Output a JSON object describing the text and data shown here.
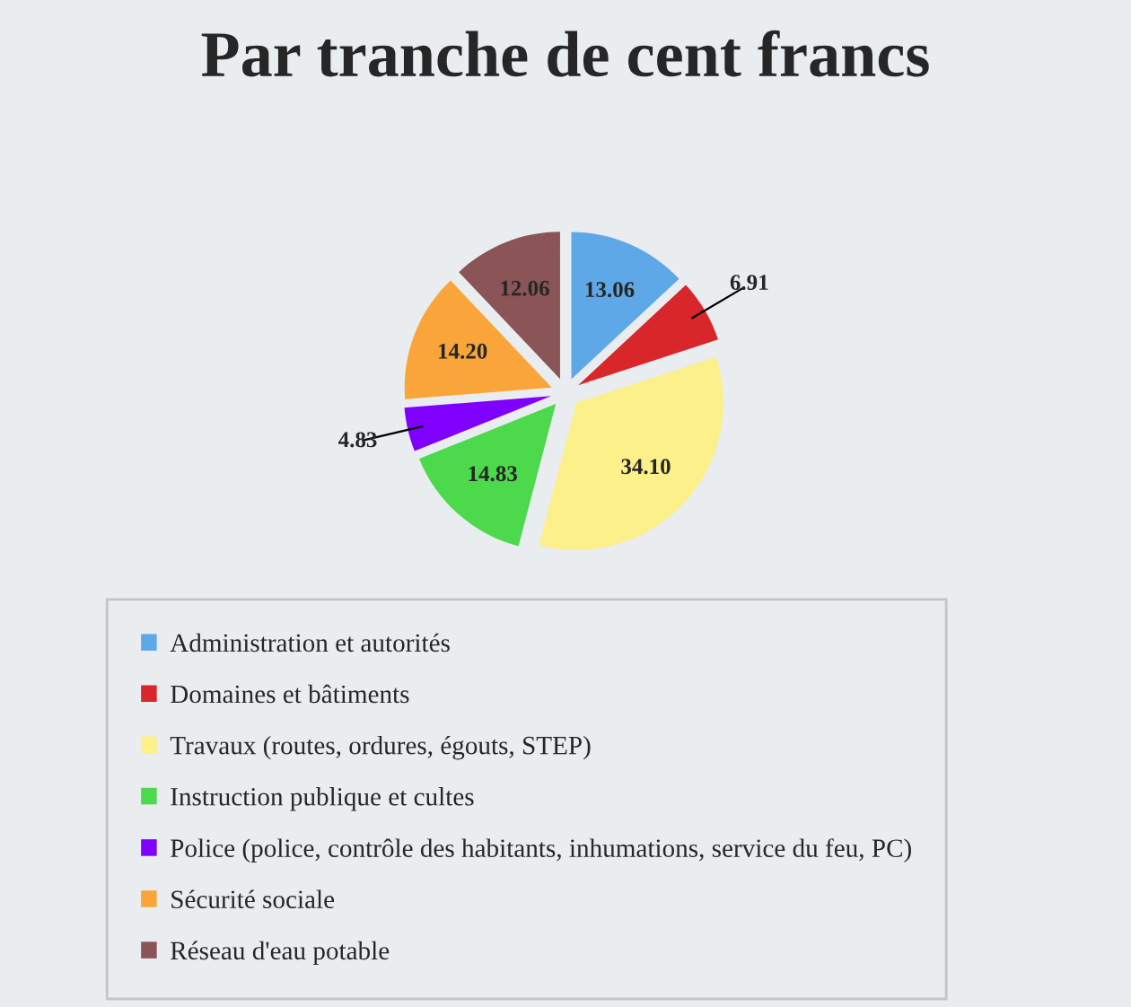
{
  "chart_data": {
    "type": "pie",
    "title": "Par tranche de cent francs",
    "categories": [
      "Administration et autorités",
      "Domaines et bâtiments",
      "Travaux (routes, ordures, égouts, STEP)",
      "Instruction publique et cultes",
      "Police (police, contrôle des habitants, inhumations, service du feu, PC)",
      "Sécurité sociale",
      "Réseau d'eau potable"
    ],
    "values": [
      13.06,
      6.91,
      34.1,
      14.83,
      4.83,
      14.2,
      12.06
    ],
    "value_labels": [
      "13.06",
      "6.91",
      "34.10",
      "14.83",
      "4.83",
      "14.20",
      "12.06"
    ],
    "colors": [
      "#5fa8e8",
      "#d9262a",
      "#fcf08a",
      "#4cd94c",
      "#7f00ff",
      "#f9a53a",
      "#8b5457"
    ],
    "legend": "bottom"
  }
}
